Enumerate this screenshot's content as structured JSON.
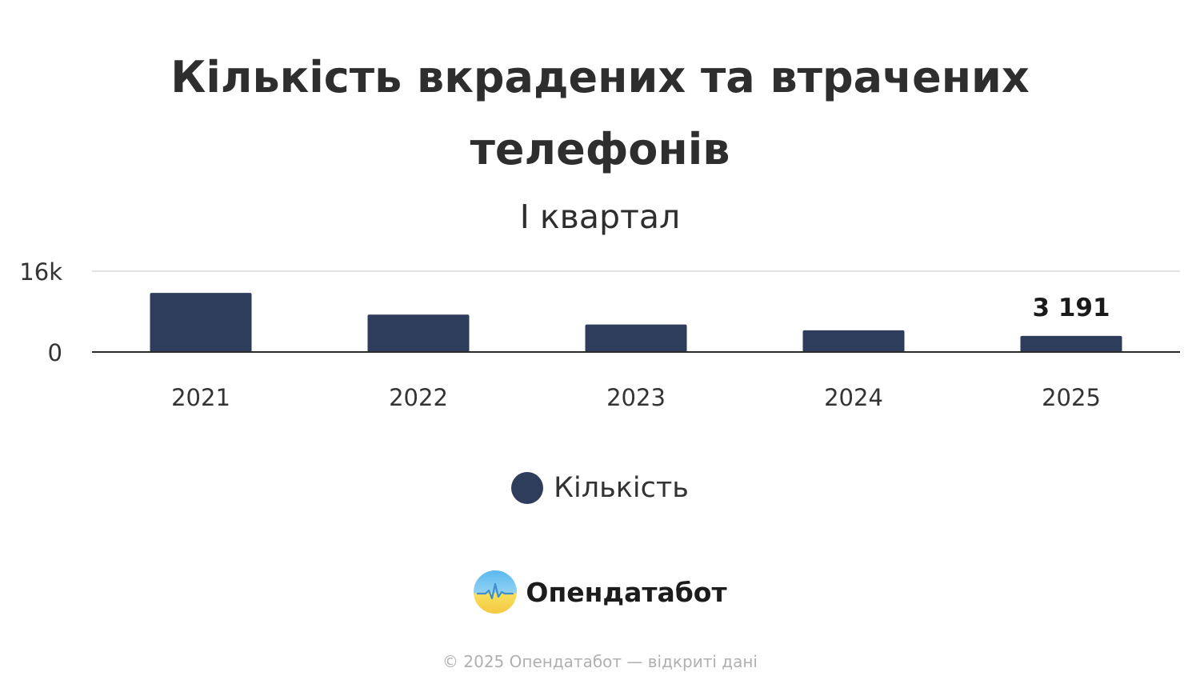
{
  "chart_data": {
    "type": "bar",
    "title": "Кількість вкрадених та втрачених телефонів",
    "subtitle": "I квартал",
    "categories": [
      "2021",
      "2022",
      "2023",
      "2024",
      "2025"
    ],
    "series": [
      {
        "name": "Кількість",
        "values": [
          11700,
          7400,
          5450,
          4300,
          3191
        ]
      }
    ],
    "data_labels": [
      {
        "category": "2025",
        "text": "3 191"
      }
    ],
    "ylim": [
      0,
      16000
    ],
    "y_ticks": [
      {
        "value": 0,
        "label": "0"
      },
      {
        "value": 16000,
        "label": "16k"
      }
    ],
    "xlabel": "",
    "ylabel": "",
    "grid": true,
    "legend": "bottom",
    "colors": {
      "bar": "#2f3d5c",
      "grid": "#e3e3e3",
      "axis": "#2b2b2b"
    }
  },
  "brand": {
    "name": "Опендатабот",
    "logo_icon": "opendatabot-logo-icon"
  },
  "footer": {
    "text": "© 2025 Опендатабот — відкриті дані"
  }
}
